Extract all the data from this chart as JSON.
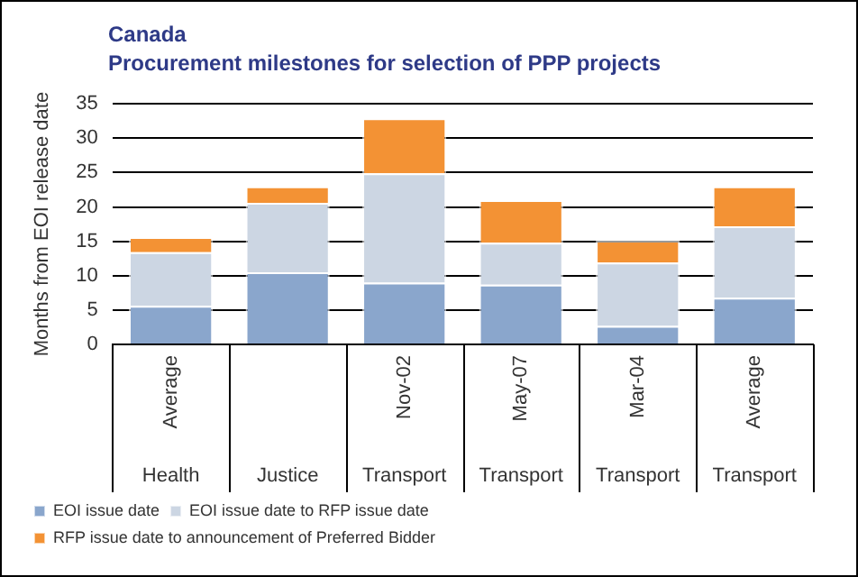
{
  "chart_data": {
    "type": "bar",
    "title": "Canada",
    "subtitle": "Procurement milestones for selection of PPP projects",
    "ylabel": "Months from EOI release date",
    "categories": [
      "Average",
      null,
      "Nov-02",
      "May-07",
      "Mar-04",
      "Average"
    ],
    "annotations": [
      "Health",
      "Justice",
      "Transport",
      "Transport",
      "Transport",
      "Transport"
    ],
    "series": [
      {
        "name": "EOI issue date",
        "color": "#8aa6cc",
        "values": [
          5.6,
          10.5,
          9.0,
          8.7,
          2.7,
          6.8
        ]
      },
      {
        "name": "EOI issue date to RFP issue date",
        "color": "#ccd6e3",
        "values": [
          7.8,
          10.1,
          15.9,
          6.1,
          9.2,
          10.4
        ]
      },
      {
        "name": "RFP issue date to announcement of Preferred Bidder",
        "color": "#f39234",
        "values": [
          2.2,
          2.4,
          8.0,
          6.2,
          3.2,
          5.8
        ]
      }
    ],
    "stacked": true,
    "ylim": [
      0,
      35
    ],
    "yticks": [
      0,
      5,
      10,
      15,
      20,
      25,
      30,
      35
    ],
    "grid": "y",
    "legend": "bottom"
  }
}
